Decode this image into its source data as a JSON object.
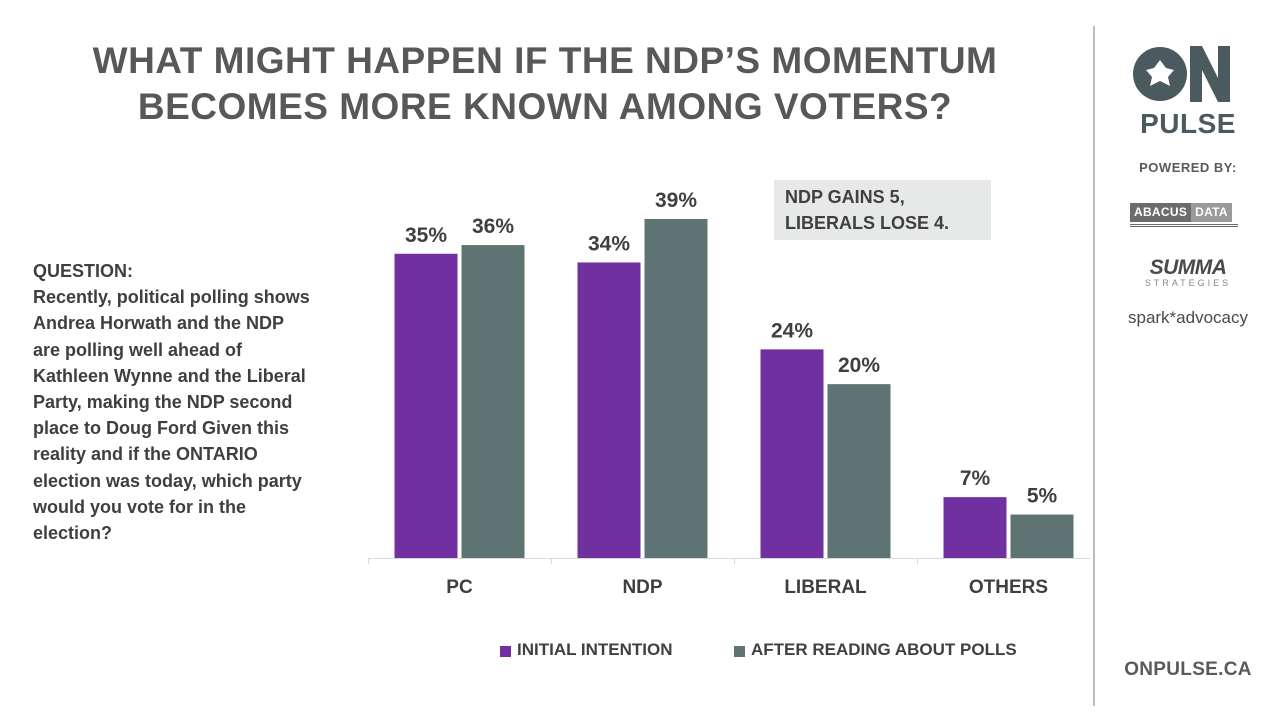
{
  "title": {
    "line1": "WHAT MIGHT HAPPEN IF THE NDP’S MOMENTUM",
    "line2": "BECOMES MORE KNOWN AMONG VOTERS?"
  },
  "question": {
    "heading": "QUESTION:",
    "lines": [
      "Recently, political polling shows",
      "Andrea Horwath and the NDP",
      "are polling well ahead of",
      "Kathleen Wynne and the Liberal",
      "Party, making the NDP second",
      "place to Doug Ford  Given this",
      "reality and if the ONTARIO",
      "election was today, which party",
      "would you vote for in the",
      "election?"
    ]
  },
  "callout": {
    "line1": "NDP GAINS 5,",
    "line2": "LIBERALS LOSE 4."
  },
  "chart_data": {
    "type": "bar",
    "categories": [
      "PC",
      "NDP",
      "LIBERAL",
      "OTHERS"
    ],
    "series": [
      {
        "name": "INITIAL INTENTION",
        "values": [
          35,
          34,
          24,
          7
        ],
        "labels": [
          "35%",
          "34%",
          "24%",
          "7%"
        ],
        "color": "#7030a0"
      },
      {
        "name": "AFTER READING ABOUT POLLS",
        "values": [
          36,
          39,
          20,
          5
        ],
        "labels": [
          "36%",
          "39%",
          "20%",
          "5%"
        ],
        "color": "#5d7472"
      }
    ],
    "ylim": [
      0,
      39
    ],
    "grid": false,
    "legend_position": "bottom"
  },
  "sidebar": {
    "logo_text": "ON",
    "pulse": "PULSE",
    "powered_by": "POWERED BY:",
    "abacus_left": "ABACUS",
    "abacus_right": "DATA",
    "summa": "SUMMA",
    "summa_sub": "STRATEGIES",
    "spark": "spark*advocacy",
    "website": "ONPULSE.CA"
  },
  "colors": {
    "title": "#585858",
    "divider": "#bdbdbd",
    "callout_bg": "#e7e9e9"
  }
}
